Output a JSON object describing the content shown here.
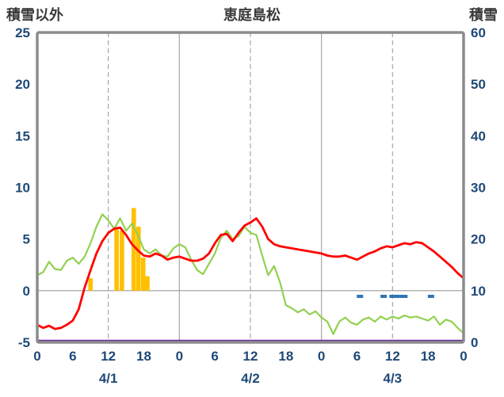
{
  "header": {
    "left_label": "積雪以外",
    "title": "恵庭島松",
    "right_label": "積雪"
  },
  "chart_data": {
    "type": "line",
    "title": "恵庭島松",
    "left_axis": {
      "title": "積雪以外",
      "min": -5,
      "max": 25,
      "ticks": [
        25,
        20,
        15,
        10,
        5,
        0,
        -5
      ]
    },
    "right_axis": {
      "title": "積雪",
      "min": 0,
      "max": 60,
      "ticks": [
        60,
        50,
        40,
        30,
        20,
        10,
        0
      ]
    },
    "x_axis": {
      "hours_total": 72,
      "tick_interval": 6,
      "hour_labels": [
        "0",
        "6",
        "12",
        "18",
        "0",
        "6",
        "12",
        "18",
        "0",
        "6",
        "12",
        "18",
        "0"
      ],
      "date_labels": [
        {
          "label": "4/1",
          "hour": 12
        },
        {
          "label": "4/2",
          "hour": 36
        },
        {
          "label": "4/3",
          "hour": 60
        }
      ]
    },
    "gridlines": {
      "solid_hours": [
        24,
        48
      ],
      "dashed_hours": [
        12,
        36,
        60
      ],
      "zero_line_value": 0
    },
    "series": [
      {
        "name": "orange-bars",
        "type": "bar",
        "axis": "left",
        "color": "#FFC000",
        "bars": [
          {
            "hour": 9,
            "value": 1.2
          },
          {
            "hour": 13.4,
            "value": 6.0
          },
          {
            "hour": 14.3,
            "value": 5.8
          },
          {
            "hour": 16.3,
            "value": 8.0
          },
          {
            "hour": 17.1,
            "value": 6.2
          },
          {
            "hour": 17.9,
            "value": 3.2
          },
          {
            "hour": 18.6,
            "value": 1.4
          }
        ]
      },
      {
        "name": "green-line",
        "type": "line",
        "axis": "left",
        "color": "#92D050",
        "start_hour": 0,
        "step": 1,
        "values": [
          1.5,
          1.8,
          2.8,
          2.1,
          2.0,
          2.9,
          3.2,
          2.6,
          3.3,
          4.6,
          6.2,
          7.4,
          6.8,
          6.0,
          7.0,
          5.8,
          6.5,
          5.4,
          4.0,
          3.6,
          4.0,
          3.4,
          3.3,
          4.1,
          4.5,
          4.2,
          3.0,
          2.0,
          1.6,
          2.6,
          3.6,
          5.1,
          5.8,
          5.0,
          5.3,
          6.2,
          5.6,
          5.4,
          3.4,
          1.5,
          2.4,
          0.8,
          -1.4,
          -1.7,
          -2.1,
          -1.8,
          -2.3,
          -2.0,
          -2.6,
          -3.0,
          -4.2,
          -3.0,
          -2.6,
          -3.1,
          -3.3,
          -2.8,
          -2.6,
          -3.0,
          -2.5,
          -2.8,
          -2.5,
          -2.7,
          -2.4,
          -2.6,
          -2.5,
          -2.7,
          -2.9,
          -2.5,
          -3.3,
          -2.8,
          -3.0,
          -3.6,
          -4.1
        ]
      },
      {
        "name": "red-line",
        "type": "line",
        "axis": "left",
        "color": "#FF0000",
        "start_hour": 0,
        "step": 1,
        "values": [
          -3.3,
          -3.6,
          -3.4,
          -3.7,
          -3.6,
          -3.3,
          -2.9,
          -1.8,
          0.3,
          2.0,
          3.6,
          4.8,
          5.6,
          6.0,
          6.1,
          5.4,
          4.5,
          3.9,
          3.4,
          3.3,
          3.6,
          3.4,
          3.0,
          3.2,
          3.3,
          3.1,
          2.9,
          2.9,
          3.1,
          3.6,
          4.6,
          5.4,
          5.5,
          4.8,
          5.6,
          6.3,
          6.6,
          7.0,
          6.2,
          5.0,
          4.5,
          4.3,
          4.2,
          4.1,
          4.0,
          3.9,
          3.8,
          3.7,
          3.6,
          3.4,
          3.3,
          3.3,
          3.4,
          3.2,
          3.0,
          3.3,
          3.6,
          3.8,
          4.1,
          4.3,
          4.2,
          4.4,
          4.6,
          4.5,
          4.7,
          4.6,
          4.2,
          3.8,
          3.3,
          2.8,
          2.3,
          1.7,
          1.2
        ]
      },
      {
        "name": "blue-marks",
        "type": "tick",
        "axis": "left",
        "color": "#2E75B6",
        "value": -0.55,
        "hours": [
          54.5,
          58.5,
          60,
          61,
          62,
          66.5
        ]
      },
      {
        "name": "purple-line",
        "type": "hline",
        "axis": "right",
        "color": "#7030A0",
        "value": 0
      }
    ],
    "colors": {
      "border": "#8C8C8C",
      "gridline": "#A6A6A6",
      "zero_line": "#9C9C9C",
      "tick_text": "#1F4977",
      "title_text": "#3A3A3A"
    }
  }
}
